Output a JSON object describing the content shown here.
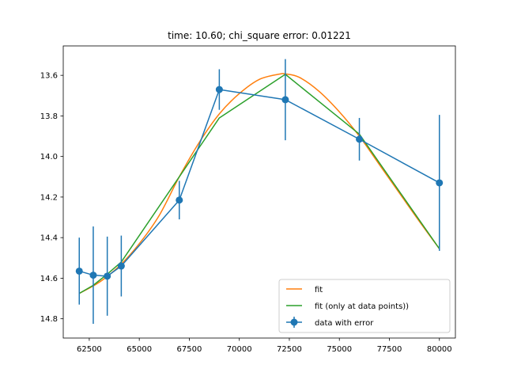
{
  "chart_data": {
    "type": "line",
    "title": "time: 10.60; chi_square error: 0.01221",
    "xlabel": "",
    "ylabel": "",
    "xlim": [
      61200,
      80800
    ],
    "ylim": [
      14.895,
      13.455
    ],
    "y_inverted": true,
    "grid": false,
    "legend_position": "lower-right",
    "x_ticks": [
      62500,
      65000,
      67500,
      70000,
      72500,
      75000,
      77500,
      80000
    ],
    "x_tick_labels": [
      "62500",
      "65000",
      "67500",
      "70000",
      "72500",
      "75000",
      "77500",
      "80000"
    ],
    "y_ticks": [
      13.6,
      13.8,
      14.0,
      14.2,
      14.4,
      14.6,
      14.8
    ],
    "y_tick_labels": [
      "13.6",
      "13.8",
      "14.0",
      "14.2",
      "14.4",
      "14.6",
      "14.8"
    ],
    "series": [
      {
        "name": "fit",
        "kind": "smooth",
        "color": "#ff7f0e",
        "x": [
          62000,
          63000,
          64000,
          65000,
          66000,
          67000,
          68000,
          69000,
          70000,
          71000,
          72000,
          72300,
          73000,
          74000,
          75000,
          76000,
          77000,
          78000,
          79000,
          80000
        ],
        "y": [
          14.675,
          14.62,
          14.54,
          14.43,
          14.29,
          14.1,
          13.93,
          13.79,
          13.69,
          13.62,
          13.594,
          13.593,
          13.61,
          13.68,
          13.78,
          13.9,
          14.04,
          14.18,
          14.32,
          14.455
        ]
      },
      {
        "name": "fit (only at data points))",
        "kind": "line",
        "color": "#2ca02c",
        "x": [
          62000,
          62700,
          63400,
          64100,
          67000,
          69000,
          72300,
          76000,
          80000
        ],
        "y": [
          14.675,
          14.635,
          14.58,
          14.52,
          14.1,
          13.81,
          13.595,
          13.89,
          14.455
        ]
      },
      {
        "name": "data with error",
        "kind": "errorbar",
        "color": "#1f77b4",
        "x": [
          62000,
          62700,
          63400,
          64100,
          67000,
          69000,
          72300,
          76000,
          80000
        ],
        "y": [
          14.565,
          14.585,
          14.59,
          14.54,
          14.215,
          13.67,
          13.72,
          13.915,
          14.13
        ],
        "yerr": [
          0.165,
          0.24,
          0.195,
          0.15,
          0.095,
          0.1,
          0.2,
          0.105,
          0.335
        ]
      }
    ]
  }
}
